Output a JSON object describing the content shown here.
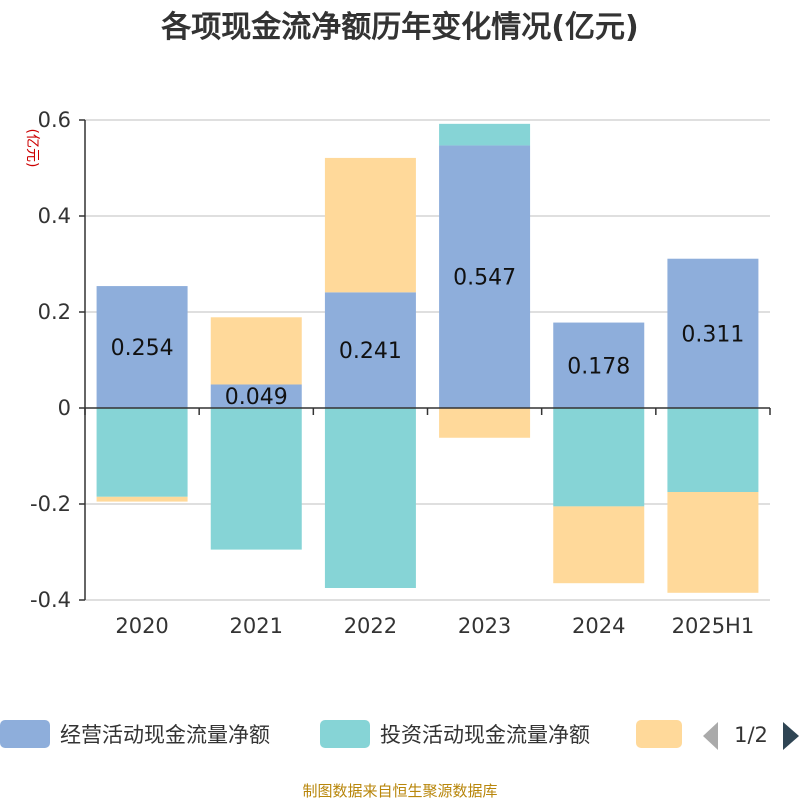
{
  "title": "各项现金流净额历年变化情况(亿元)",
  "source": "制图数据来自恒生聚源数据库",
  "chart_data": {
    "type": "bar",
    "stacked": true,
    "unit": "(亿元)",
    "categories": [
      "2020",
      "2021",
      "2022",
      "2023",
      "2024",
      "2025H1"
    ],
    "ylim": [
      -0.4,
      0.6
    ],
    "yticks": [
      -0.4,
      -0.2,
      0,
      0.2,
      0.4,
      0.6
    ],
    "ytick_labels": [
      "-0.4",
      "-0.2",
      "0",
      "0.2",
      "0.4",
      "0.6"
    ],
    "grid": true,
    "series": [
      {
        "name": "经营活动现金流量净额",
        "color": "#8eaedb",
        "values": [
          0.254,
          0.049,
          0.241,
          0.547,
          0.178,
          0.311
        ],
        "labels": [
          "0.254",
          "0.049",
          "0.241",
          "0.547",
          "0.178",
          "0.311"
        ]
      },
      {
        "name": "投资活动现金流量净额",
        "color": "#86d4d6",
        "values": [
          -0.185,
          -0.295,
          -0.375,
          0.045,
          -0.205,
          -0.175
        ]
      },
      {
        "name": "",
        "color": "#ffd99a",
        "values": [
          -0.01,
          0.14,
          0.28,
          -0.062,
          -0.16,
          -0.21
        ]
      }
    ],
    "legend": {
      "position": "bottom",
      "page": "1/2"
    }
  }
}
